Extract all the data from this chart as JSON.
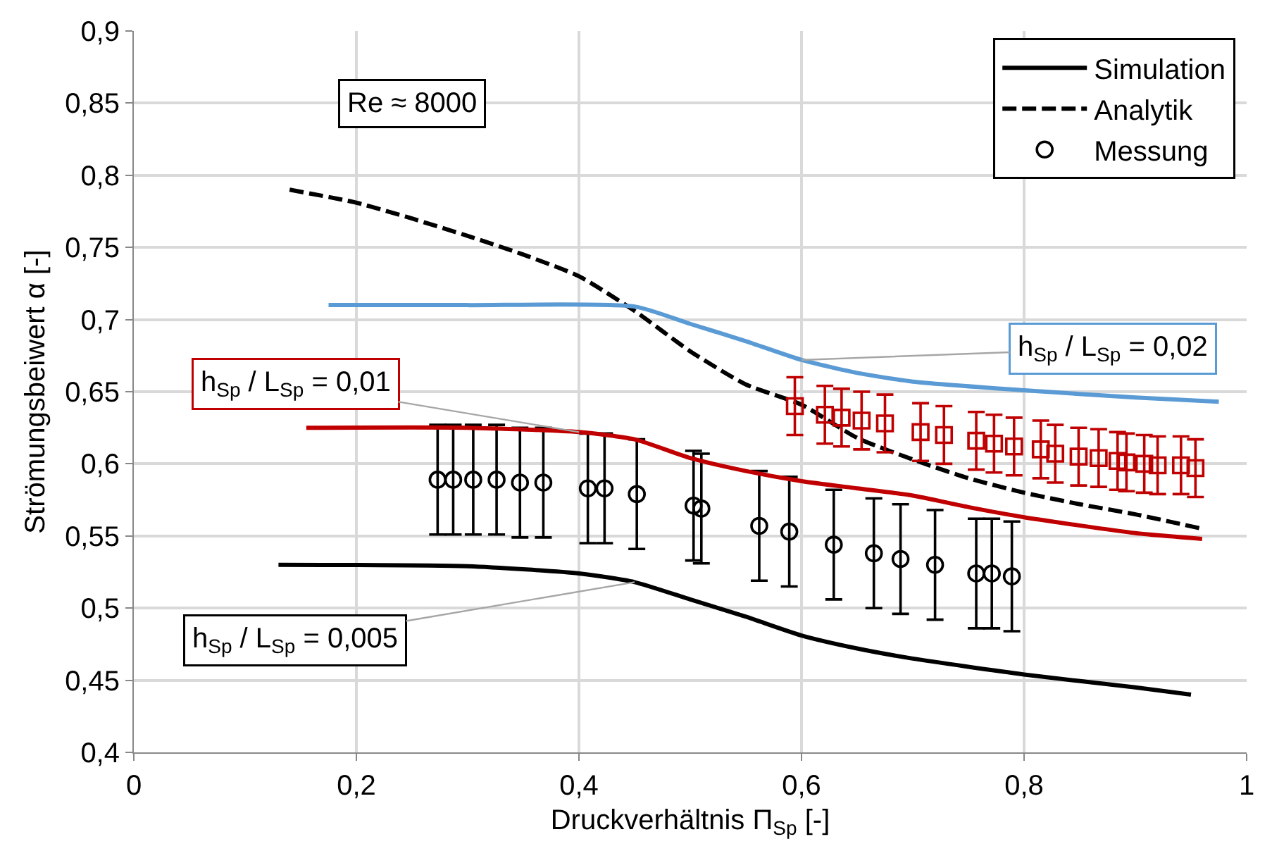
{
  "chart_data": {
    "type": "line",
    "xlabel": "Druckverhältnis Π$_{Sp}$ [-]",
    "ylabel": "Strömungsbeiwert α [-]",
    "xlim": [
      0,
      1
    ],
    "ylim": [
      0.4,
      0.9
    ],
    "xticks": [
      0,
      {
        "value": 0.2,
        "label": "0,2"
      },
      {
        "value": 0.4,
        "label": "0,4"
      },
      {
        "value": 0.6,
        "label": "0,6"
      },
      {
        "value": 0.8,
        "label": "0,8"
      },
      1
    ],
    "yticks": [
      {
        "value": 0.4,
        "label": "0,4"
      },
      {
        "value": 0.45,
        "label": "0,45"
      },
      {
        "value": 0.5,
        "label": "0,5"
      },
      {
        "value": 0.55,
        "label": "0,55"
      },
      {
        "value": 0.6,
        "label": "0,6"
      },
      {
        "value": 0.65,
        "label": "0,65"
      },
      {
        "value": 0.7,
        "label": "0,7"
      },
      {
        "value": 0.75,
        "label": "0,75"
      },
      {
        "value": 0.8,
        "label": "0,8"
      },
      {
        "value": 0.85,
        "label": "0,85"
      },
      {
        "value": 0.9,
        "label": "0,9"
      }
    ],
    "grid": true,
    "legend": "top right",
    "series": [
      {
        "name": "Simulation",
        "color": "#000000",
        "marker": "none",
        "line_style": "solid",
        "x": [
          0.13,
          0.3,
          0.4,
          0.45,
          0.5,
          0.55,
          0.6,
          0.65,
          0.7,
          0.8,
          0.9,
          0.95
        ],
        "values": [
          0.53,
          0.529,
          0.524,
          0.518,
          0.506,
          0.494,
          0.481,
          0.472,
          0.465,
          0.454,
          0.445,
          0.44
        ]
      },
      {
        "name": "Analytik",
        "color": "#000000",
        "marker": "none",
        "line_style": "dashed",
        "x": [
          0.14,
          0.2,
          0.25,
          0.3,
          0.35,
          0.4,
          0.45,
          0.5,
          0.55,
          0.6,
          0.65,
          0.7,
          0.75,
          0.8,
          0.85,
          0.9,
          0.96
        ],
        "values": [
          0.79,
          0.781,
          0.77,
          0.758,
          0.745,
          0.73,
          0.706,
          0.678,
          0.655,
          0.641,
          0.618,
          0.603,
          0.59,
          0.58,
          0.572,
          0.565,
          0.555
        ]
      },
      {
        "name": "Messung",
        "type": "scatter",
        "color": "#000000",
        "marker": "circle",
        "x": [
          0.273,
          0.287,
          0.305,
          0.326,
          0.347,
          0.368,
          0.408,
          0.423,
          0.452,
          0.503,
          0.51,
          0.562,
          0.589,
          0.629,
          0.665,
          0.689,
          0.72,
          0.757,
          0.771,
          0.789
        ],
        "values": [
          0.589,
          0.589,
          0.589,
          0.589,
          0.587,
          0.587,
          0.583,
          0.583,
          0.579,
          0.571,
          0.569,
          0.557,
          0.553,
          0.544,
          0.538,
          0.534,
          0.53,
          0.524,
          0.524,
          0.522
        ],
        "errors": [
          0.038,
          0.038,
          0.038,
          0.038,
          0.038,
          0.038,
          0.038,
          0.038,
          0.038,
          0.038,
          0.038,
          0.038,
          0.038,
          0.038,
          0.038,
          0.038,
          0.038,
          0.038,
          0.038,
          0.038
        ]
      },
      {
        "color": "#5b9bd5",
        "marker": "none",
        "line_style": "solid",
        "x": [
          0.175,
          0.3,
          0.45,
          0.5,
          0.55,
          0.6,
          0.65,
          0.7,
          0.8,
          0.9,
          0.975
        ],
        "values": [
          0.71,
          0.71,
          0.709,
          0.697,
          0.685,
          0.672,
          0.663,
          0.657,
          0.651,
          0.646,
          0.643
        ]
      },
      {
        "color": "#c00000",
        "marker": "none",
        "line_style": "solid",
        "x": [
          0.155,
          0.3,
          0.4,
          0.45,
          0.5,
          0.55,
          0.6,
          0.65,
          0.7,
          0.75,
          0.8,
          0.9,
          0.96
        ],
        "values": [
          0.625,
          0.625,
          0.622,
          0.617,
          0.604,
          0.595,
          0.588,
          0.583,
          0.578,
          0.57,
          0.563,
          0.552,
          0.548
        ]
      },
      {
        "type": "scatter",
        "color": "#c00000",
        "marker": "square",
        "x": [
          0.594,
          0.621,
          0.636,
          0.654,
          0.675,
          0.707,
          0.728,
          0.757,
          0.773,
          0.791,
          0.815,
          0.828,
          0.849,
          0.867,
          0.884,
          0.892,
          0.908,
          0.92,
          0.941,
          0.954
        ],
        "values": [
          0.64,
          0.634,
          0.632,
          0.63,
          0.628,
          0.622,
          0.62,
          0.616,
          0.614,
          0.612,
          0.61,
          0.607,
          0.605,
          0.604,
          0.602,
          0.601,
          0.6,
          0.599,
          0.599,
          0.597
        ],
        "errors": [
          0.02,
          0.02,
          0.02,
          0.02,
          0.02,
          0.02,
          0.02,
          0.02,
          0.02,
          0.02,
          0.02,
          0.02,
          0.02,
          0.02,
          0.02,
          0.02,
          0.02,
          0.02,
          0.02,
          0.02
        ]
      }
    ],
    "annotations": [
      "Re ≈ 8000",
      {
        "text": "h$_{Sp}$ / L$_{Sp}$ = 0,02",
        "x": 0.6,
        "y": 0.672
      },
      {
        "text": "h$_{Sp}$ / L$_{Sp}$ = 0,01",
        "x": 0.4,
        "y": 0.622
      },
      {
        "text": "h$_{Sp}$ / L$_{Sp}$ = 0,005",
        "x": 0.45,
        "y": 0.518
      }
    ]
  }
}
